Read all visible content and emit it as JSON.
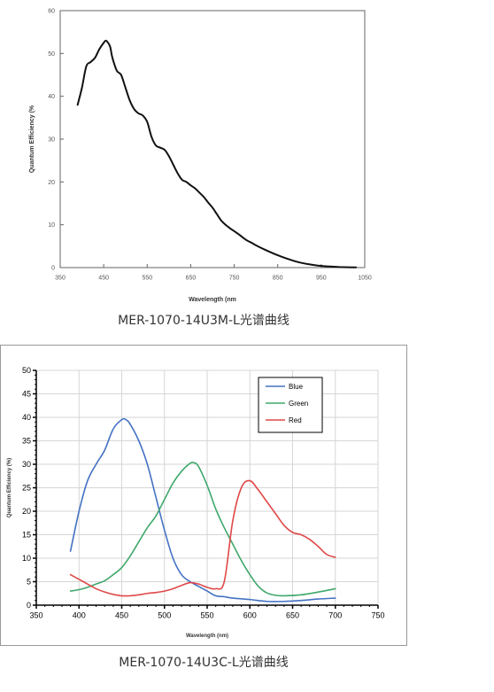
{
  "chart_data": [
    {
      "type": "line",
      "xlabel": "Wavelength (nm",
      "ylabel": "Quantum Efficiency (%",
      "xlim": [
        350,
        1050
      ],
      "ylim": [
        0,
        60
      ],
      "xticks": [
        350,
        450,
        550,
        650,
        750,
        850,
        950,
        1050
      ],
      "yticks": [
        0,
        10,
        20,
        30,
        40,
        50,
        60
      ],
      "grid": false,
      "series": [
        {
          "color": "#111111",
          "x": [
            390,
            400,
            410,
            420,
            430,
            440,
            450,
            455,
            460,
            465,
            470,
            480,
            490,
            500,
            510,
            520,
            530,
            540,
            550,
            560,
            570,
            580,
            590,
            600,
            610,
            620,
            630,
            640,
            650,
            660,
            670,
            680,
            690,
            700,
            710,
            720,
            730,
            740,
            750,
            760,
            770,
            780,
            790,
            800,
            820,
            840,
            860,
            880,
            900,
            920,
            940,
            960,
            980,
            1000,
            1030
          ],
          "y": [
            38,
            42,
            47,
            48,
            49,
            51,
            52.5,
            53,
            52.5,
            51.5,
            49,
            46,
            45,
            42,
            39,
            37,
            36,
            35.5,
            34,
            30.5,
            28.5,
            28,
            27.5,
            26,
            24,
            22,
            20.5,
            20,
            19.2,
            18.5,
            17.5,
            16.5,
            15.2,
            14,
            12.5,
            11,
            10,
            9.2,
            8.5,
            7.8,
            7,
            6.3,
            5.8,
            5.2,
            4.2,
            3.3,
            2.5,
            1.8,
            1.2,
            0.8,
            0.5,
            0.3,
            0.2,
            0.1,
            0.05
          ]
        }
      ]
    },
    {
      "type": "line",
      "xlabel": "Wavelength (nm)",
      "ylabel": "Quantum Efficiency (%)",
      "xlim": [
        350,
        750
      ],
      "ylim": [
        0,
        50
      ],
      "xticks": [
        350,
        400,
        450,
        500,
        550,
        600,
        650,
        700,
        750
      ],
      "yticks": [
        0,
        5,
        10,
        15,
        20,
        25,
        30,
        35,
        40,
        45,
        50
      ],
      "grid": true,
      "legend_position": "top-right",
      "series": [
        {
          "name": "Blue",
          "color": "#4472C4",
          "x": [
            390,
            400,
            410,
            420,
            430,
            440,
            450,
            455,
            460,
            470,
            480,
            490,
            500,
            510,
            520,
            530,
            540,
            550,
            560,
            570,
            580,
            600,
            620,
            640,
            660,
            680,
            700
          ],
          "y": [
            11.5,
            20,
            26.5,
            30,
            33,
            37.5,
            39.5,
            39.5,
            38.5,
            35,
            30,
            23,
            16,
            10,
            6.5,
            5,
            4,
            3,
            2,
            1.8,
            1.5,
            1.2,
            0.8,
            0.8,
            1,
            1.3,
            1.5
          ]
        },
        {
          "name": "Green",
          "color": "#3FA86B",
          "x": [
            390,
            400,
            410,
            420,
            430,
            440,
            450,
            460,
            470,
            480,
            490,
            500,
            510,
            520,
            530,
            535,
            540,
            550,
            560,
            570,
            580,
            590,
            600,
            610,
            620,
            630,
            640,
            660,
            680,
            700
          ],
          "y": [
            3,
            3.3,
            3.8,
            4.5,
            5.2,
            6.5,
            8,
            10.5,
            13.5,
            16.5,
            19,
            22.5,
            26,
            28.5,
            30.2,
            30.3,
            29.5,
            25.5,
            20.5,
            16.5,
            13,
            9.5,
            6.5,
            4,
            2.6,
            2.1,
            2,
            2.2,
            2.8,
            3.5
          ]
        },
        {
          "name": "Red",
          "color": "#E04848",
          "x": [
            390,
            400,
            410,
            420,
            430,
            440,
            450,
            460,
            470,
            480,
            490,
            500,
            510,
            520,
            530,
            540,
            550,
            560,
            570,
            580,
            590,
            600,
            610,
            620,
            630,
            640,
            650,
            660,
            670,
            680,
            690,
            700
          ],
          "y": [
            6.5,
            5.5,
            4.5,
            3.5,
            2.8,
            2.3,
            2,
            2,
            2.2,
            2.5,
            2.7,
            3,
            3.5,
            4.2,
            4.8,
            4.5,
            3.8,
            3.5,
            5,
            18,
            25,
            26.5,
            24.5,
            22,
            19.5,
            17,
            15.5,
            15,
            14,
            12.5,
            10.8,
            10.2
          ]
        }
      ]
    }
  ],
  "captions": {
    "top": "MER-1070-14U3M-L光谱曲线",
    "bottom": "MER-1070-14U3C-L光谱曲线"
  }
}
